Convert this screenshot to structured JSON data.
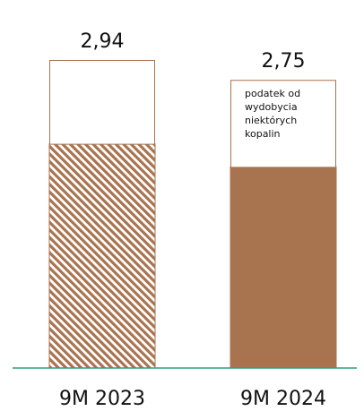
{
  "chart_data": {
    "type": "bar",
    "stacked": true,
    "categories": [
      "9M 2023",
      "9M 2024"
    ],
    "totals": [
      "2,94",
      "2,75"
    ],
    "series": [
      {
        "values": [
          2.14,
          1.92
        ],
        "color": "#a8734f",
        "fill_styles": [
          "hatched",
          "solid"
        ]
      },
      {
        "name": "podatek od wydobycia niektórych kopalin",
        "values": [
          0.8,
          0.83
        ],
        "color": "#ffffff",
        "border_color": "#a8734f"
      }
    ],
    "segment_label_lines": [
      "podatek od",
      "wydobycia",
      "niektórych",
      "kopalin"
    ],
    "baseline_color": "#2e9e7a",
    "ylim": [
      0,
      2.94
    ],
    "grid": false,
    "legend": "none"
  }
}
